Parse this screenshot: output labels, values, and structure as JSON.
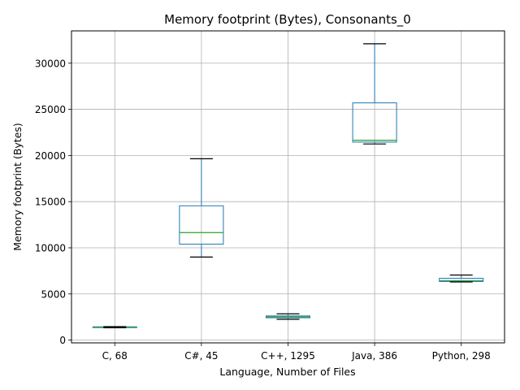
{
  "chart_data": {
    "type": "box",
    "title": "Memory footprint (Bytes), Consonants_0",
    "xlabel": "Language, Number of Files",
    "ylabel": "Memory footprint (Bytes)",
    "ylim": [
      -300,
      33500
    ],
    "yticks": [
      0,
      5000,
      10000,
      15000,
      20000,
      25000,
      30000
    ],
    "grid": true,
    "categories": [
      "C, 68",
      "C#, 45",
      "C++, 1295",
      "Java, 386",
      "Python, 298"
    ],
    "boxes": [
      {
        "whisker_low": 1340,
        "q1": 1370,
        "median": 1400,
        "q3": 1440,
        "whisker_high": 1460
      },
      {
        "whisker_low": 9000,
        "q1": 10400,
        "median": 11650,
        "q3": 14550,
        "whisker_high": 19650
      },
      {
        "whisker_low": 2250,
        "q1": 2420,
        "median": 2520,
        "q3": 2620,
        "whisker_high": 2850
      },
      {
        "whisker_low": 21250,
        "q1": 21450,
        "median": 21650,
        "q3": 25700,
        "whisker_high": 32100
      },
      {
        "whisker_low": 6300,
        "q1": 6350,
        "median": 6450,
        "q3": 6700,
        "whisker_high": 7050
      }
    ],
    "colors": {
      "box": "#1f77b4",
      "median": "#2ca02c",
      "whisker_cap": "#000000",
      "grid": "#b0b0b0"
    }
  }
}
